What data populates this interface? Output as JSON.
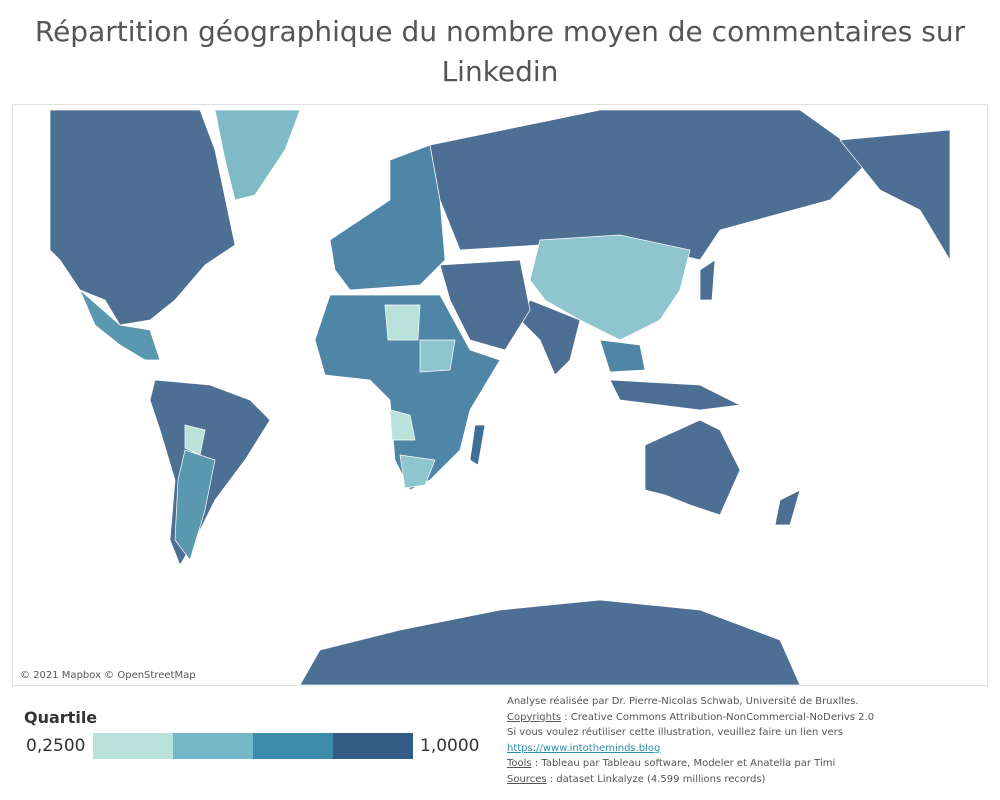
{
  "title": "Répartition géographique du nombre moyen de commentaires sur Linkedin",
  "map": {
    "attribution": "© 2021 Mapbox © OpenStreetMap"
  },
  "legend": {
    "title": "Quartile",
    "min_label": "0,2500",
    "max_label": "1,0000",
    "colors": [
      "#b8e2da",
      "#75b9c8",
      "#3e8cab",
      "#335d85"
    ]
  },
  "footer": {
    "credit": "Analyse réalisée par Dr. Pierre-Nicolas Schwab, Université de Bruxlles.",
    "lines": [
      {
        "label": "Copyrights",
        "text": " : Creative Commons Attribution-NonCommercial-NoDerivs 2.0"
      },
      {
        "text": "Si vous voulez réutiliser cette illustration, veuillez faire un lien vers"
      },
      {
        "link": "https://www.intotheminds.blog"
      },
      {
        "label": "Tools",
        "text": " : Tableau par Tableau software, Modeler et Anatella par Timi"
      },
      {
        "label": "Sources",
        "text": " : dataset Linkalyze (4.599 millions records)"
      }
    ]
  }
}
